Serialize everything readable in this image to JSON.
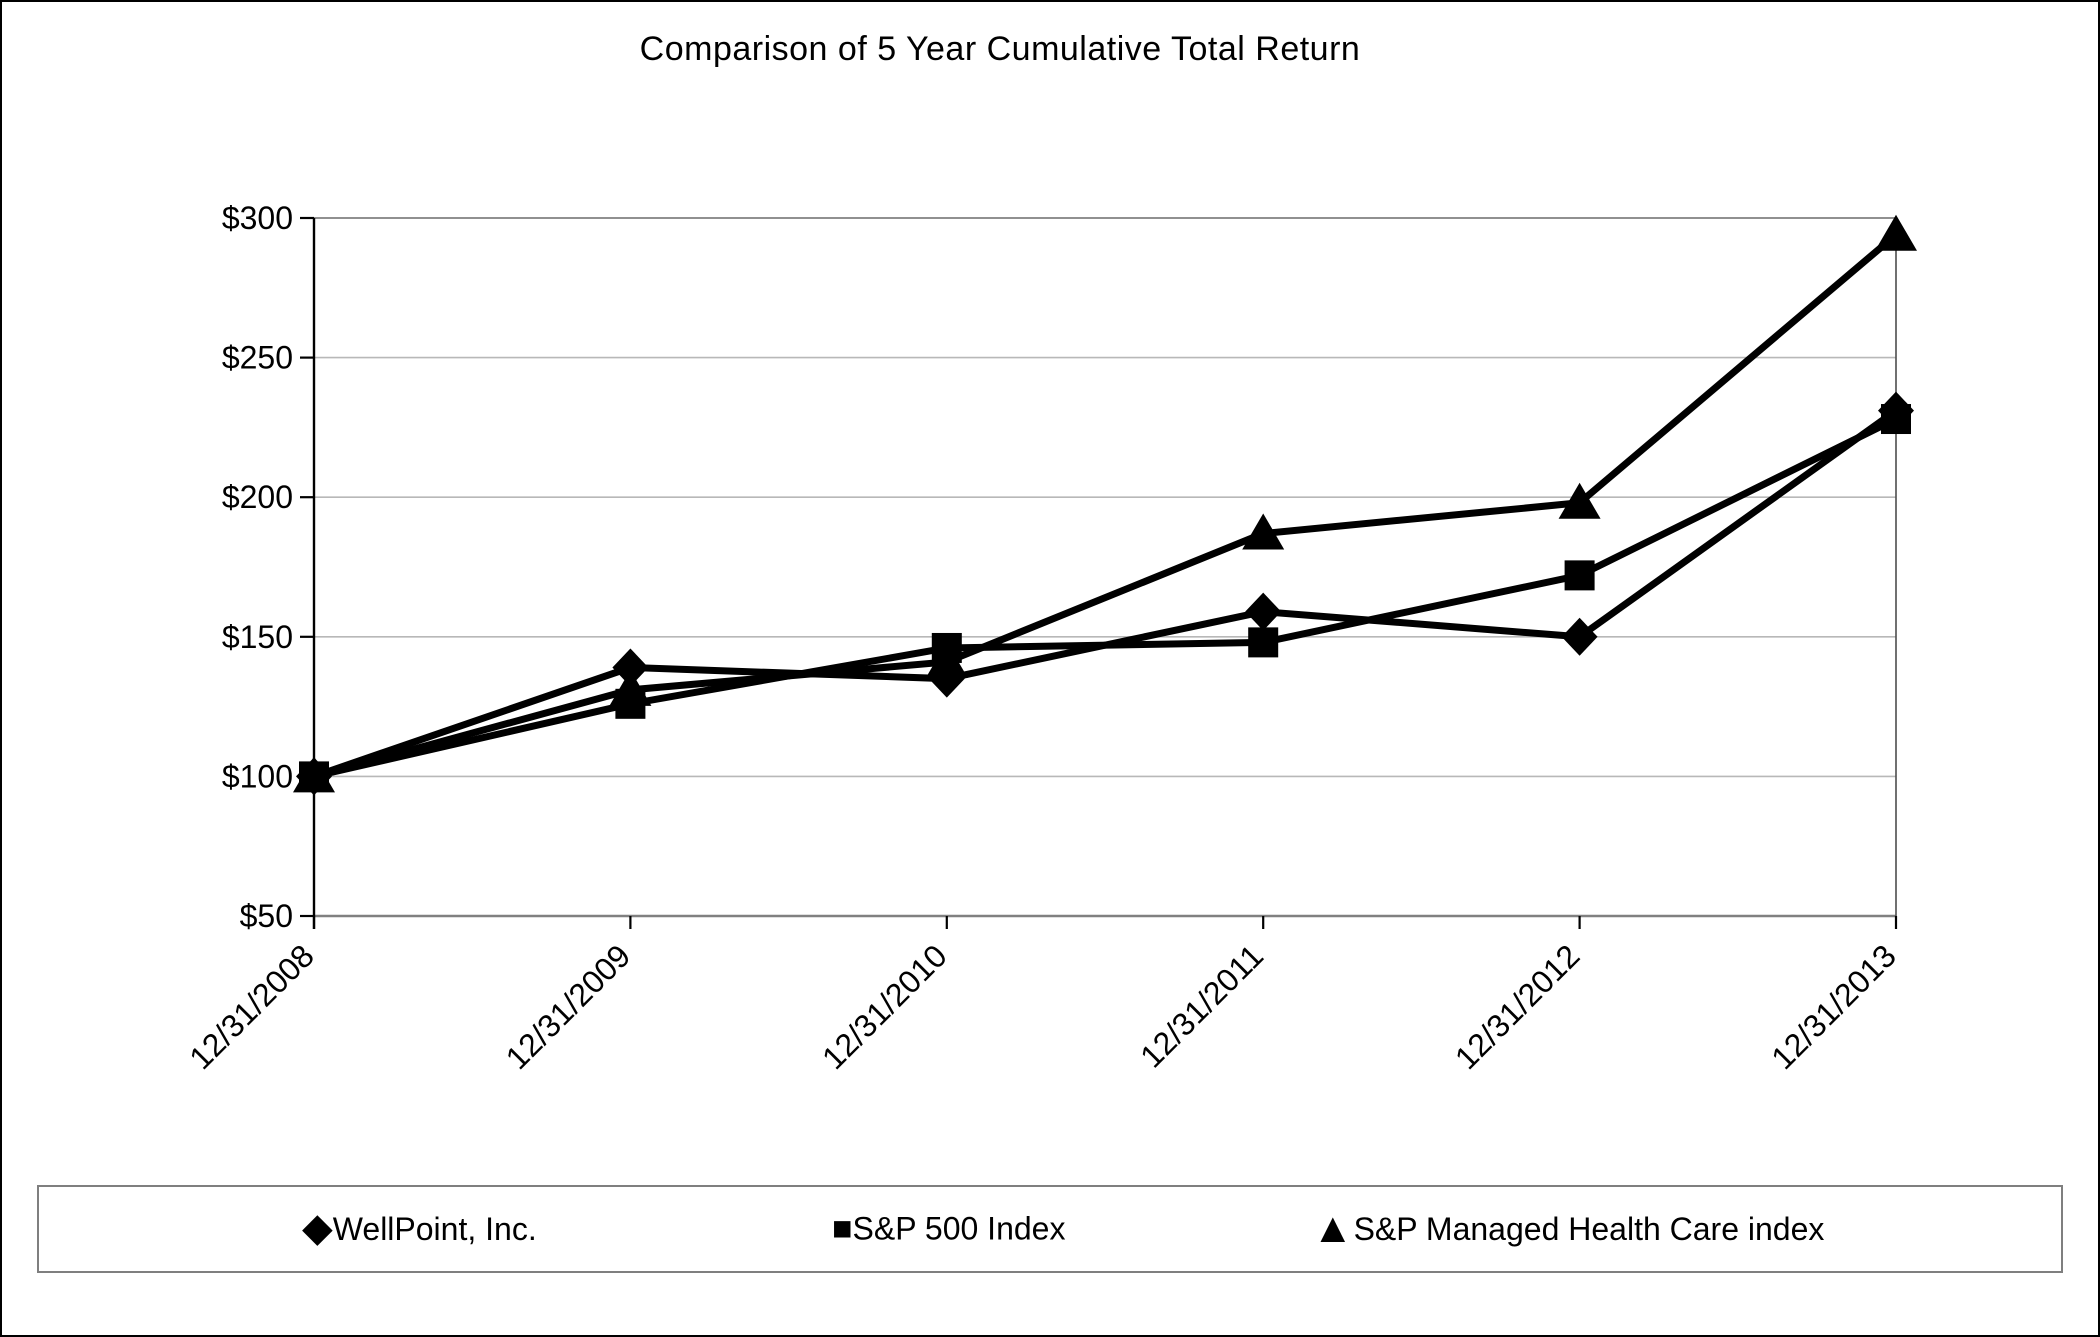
{
  "title": "Comparison of 5 Year Cumulative Total Return",
  "chart_data": {
    "type": "line",
    "title": "Comparison of 5 Year Cumulative Total Return",
    "categories": [
      "12/31/2008",
      "12/31/2009",
      "12/31/2010",
      "12/31/2011",
      "12/31/2012",
      "12/31/2013"
    ],
    "series": [
      {
        "name": "WellPoint, Inc.",
        "marker": "diamond",
        "marker_glyph": "◆",
        "values": [
          100,
          139,
          135,
          159,
          150,
          231
        ]
      },
      {
        "name": "S&P 500 Index",
        "marker": "square",
        "marker_glyph": "■",
        "values": [
          100,
          126,
          146,
          148,
          172,
          228
        ]
      },
      {
        "name": "S&P Managed Health Care index",
        "marker": "triangle",
        "marker_glyph": "▲",
        "values": [
          100,
          131,
          141,
          187,
          198,
          294
        ]
      }
    ],
    "y_tick_labels": [
      "$50",
      "$100",
      "$150",
      "$200",
      "$250",
      "$300"
    ],
    "y_tick_values": [
      50,
      100,
      150,
      200,
      250,
      300
    ],
    "ylim": [
      50,
      300
    ],
    "xlabel": "",
    "ylabel": "",
    "grid": "horizontal",
    "legend_position": "bottom",
    "colors": {
      "series_line": "#000000",
      "marker_fill": "#000000",
      "gridline": "#b8b8b8",
      "plot_border": "#808080",
      "axis_line": "#000000",
      "text": "#000000"
    }
  }
}
